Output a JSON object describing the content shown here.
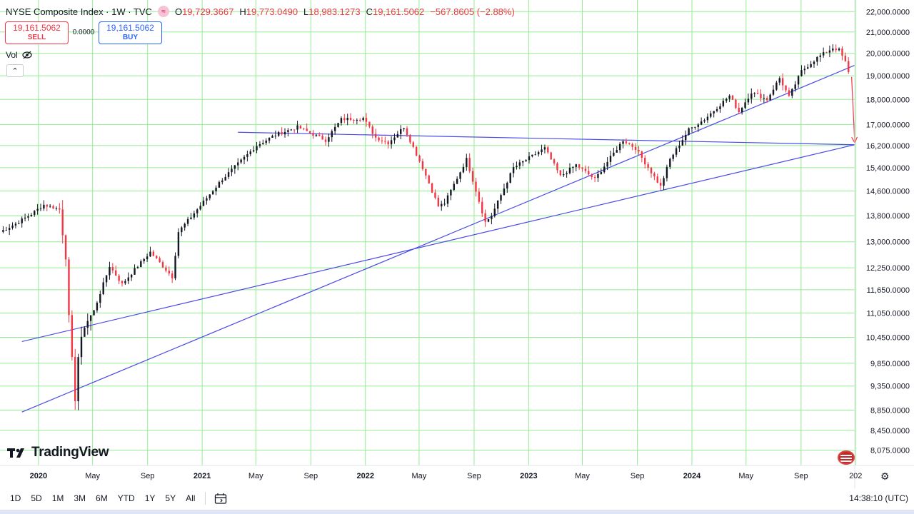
{
  "header": {
    "symbol": "NYSE Composite Index · 1W · TVC",
    "badge_icon": "≈",
    "o_label": "O",
    "o_value": "19,729.3667",
    "h_label": "H",
    "h_value": "19,773.0490",
    "l_label": "L",
    "l_value": "18,983.1273",
    "c_label": "C",
    "c_value": "19,161.5062",
    "change": "−567.8605 (−2.88%)"
  },
  "trade": {
    "sell_price": "19,161.5062",
    "sell_label": "SELL",
    "spread": "0.0000",
    "buy_price": "19,161.5062",
    "buy_label": "BUY"
  },
  "vol_label": "Vol",
  "collapse_icon": "⌃",
  "logo_text": "TradingView",
  "timeframes": [
    "1D",
    "5D",
    "1M",
    "3M",
    "6M",
    "YTD",
    "1Y",
    "5Y",
    "All"
  ],
  "clock": "14:38:10 (UTC)",
  "colors": {
    "grid": "#90ee90",
    "up": "#131722",
    "down": "#f23645",
    "trendline": "#4a4ae8",
    "arrow": "#f23645"
  },
  "chart_data": {
    "type": "candlestick",
    "y_scale": "log",
    "ylim": [
      7900,
      22300
    ],
    "y_ticks": [
      22000,
      21000,
      20000,
      19000,
      18000,
      17000,
      16200,
      15400,
      14600,
      13800,
      13000,
      12250,
      11650,
      11050,
      10450,
      9850,
      9350,
      8850,
      8450,
      8075
    ],
    "y_tick_labels": [
      "22,000.0000",
      "21,000.0000",
      "20,000.0000",
      "19,000.0000",
      "18,000.0000",
      "17,000.0000",
      "16,200.0000",
      "15,400.0000",
      "14,600.0000",
      "13,800.0000",
      "13,000.0000",
      "12,250.0000",
      "11,650.0000",
      "11,050.0000",
      "10,450.0000",
      "9,850.0000",
      "9,350.0000",
      "8,850.0000",
      "8,450.0000",
      "8,075.0000"
    ],
    "x_range": [
      "2019-10-07",
      "2024-12-30"
    ],
    "x_ticks": [
      {
        "date": "2020-01-01",
        "label": "2020"
      },
      {
        "date": "2020-05-01",
        "label": "May"
      },
      {
        "date": "2020-09-01",
        "label": "Sep"
      },
      {
        "date": "2021-01-01",
        "label": "2021"
      },
      {
        "date": "2021-05-01",
        "label": "May"
      },
      {
        "date": "2021-09-01",
        "label": "Sep"
      },
      {
        "date": "2022-01-01",
        "label": "2022"
      },
      {
        "date": "2022-05-01",
        "label": "May"
      },
      {
        "date": "2022-09-01",
        "label": "Sep"
      },
      {
        "date": "2023-01-01",
        "label": "2023"
      },
      {
        "date": "2023-05-01",
        "label": "May"
      },
      {
        "date": "2023-09-01",
        "label": "Sep"
      },
      {
        "date": "2024-01-01",
        "label": "2024"
      },
      {
        "date": "2024-05-01",
        "label": "May"
      },
      {
        "date": "2024-09-01",
        "label": "Sep"
      },
      {
        "date": "2025-01-01",
        "label": "202"
      }
    ],
    "path_keypoints": [
      [
        "2019-10-07",
        13300
      ],
      [
        "2019-11-11",
        13550
      ],
      [
        "2019-12-16",
        13850
      ],
      [
        "2020-01-13",
        14150
      ],
      [
        "2020-02-17",
        14000
      ],
      [
        "2020-03-02",
        12600
      ],
      [
        "2020-03-09",
        10900
      ],
      [
        "2020-03-16",
        9900
      ],
      [
        "2020-03-23",
        9100
      ],
      [
        "2020-03-30",
        10000
      ],
      [
        "2020-04-13",
        10750
      ],
      [
        "2020-05-04",
        11100
      ],
      [
        "2020-06-08",
        12300
      ],
      [
        "2020-07-06",
        11800
      ],
      [
        "2020-08-03",
        12200
      ],
      [
        "2020-09-07",
        12700
      ],
      [
        "2020-10-26",
        12000
      ],
      [
        "2020-11-09",
        13300
      ],
      [
        "2020-12-21",
        14000
      ],
      [
        "2021-02-15",
        15000
      ],
      [
        "2021-05-03",
        16200
      ],
      [
        "2021-06-14",
        16600
      ],
      [
        "2021-08-02",
        16900
      ],
      [
        "2021-10-04",
        16400
      ],
      [
        "2021-11-08",
        17200
      ],
      [
        "2021-12-27",
        17250
      ],
      [
        "2022-01-24",
        16500
      ],
      [
        "2022-02-21",
        16300
      ],
      [
        "2022-03-28",
        16900
      ],
      [
        "2022-05-09",
        15400
      ],
      [
        "2022-06-13",
        14100
      ],
      [
        "2022-06-27",
        14200
      ],
      [
        "2022-08-15",
        15700
      ],
      [
        "2022-09-26",
        13600
      ],
      [
        "2022-10-10",
        13800
      ],
      [
        "2022-11-28",
        15400
      ],
      [
        "2023-02-06",
        16100
      ],
      [
        "2023-03-13",
        15100
      ],
      [
        "2023-04-17",
        15500
      ],
      [
        "2023-05-29",
        15000
      ],
      [
        "2023-07-31",
        16400
      ],
      [
        "2023-08-28",
        16100
      ],
      [
        "2023-10-23",
        14750
      ],
      [
        "2023-11-13",
        15700
      ],
      [
        "2023-12-25",
        16800
      ],
      [
        "2024-01-29",
        17200
      ],
      [
        "2024-03-25",
        18150
      ],
      [
        "2024-04-15",
        17500
      ],
      [
        "2024-05-13",
        18300
      ],
      [
        "2024-06-17",
        18000
      ],
      [
        "2024-07-15",
        18900
      ],
      [
        "2024-08-05",
        18100
      ],
      [
        "2024-09-02",
        19200
      ],
      [
        "2024-10-07",
        19800
      ],
      [
        "2024-11-11",
        20250
      ],
      [
        "2024-11-25",
        20150
      ],
      [
        "2024-12-09",
        19600
      ],
      [
        "2024-12-16",
        19161.5062
      ]
    ],
    "trendlines": [
      {
        "from": [
          "2019-11-25",
          10350
        ],
        "to": [
          "2024-12-30",
          16230
        ]
      },
      {
        "from": [
          "2019-11-25",
          8810
        ],
        "to": [
          "2024-12-30",
          19460
        ]
      },
      {
        "from": [
          "2021-03-22",
          16700
        ],
        "to": [
          "2024-12-30",
          16230
        ]
      }
    ],
    "arrow": {
      "from": [
        "2024-12-23",
        18950
      ],
      "to": [
        "2024-12-30",
        16300
      ]
    }
  }
}
